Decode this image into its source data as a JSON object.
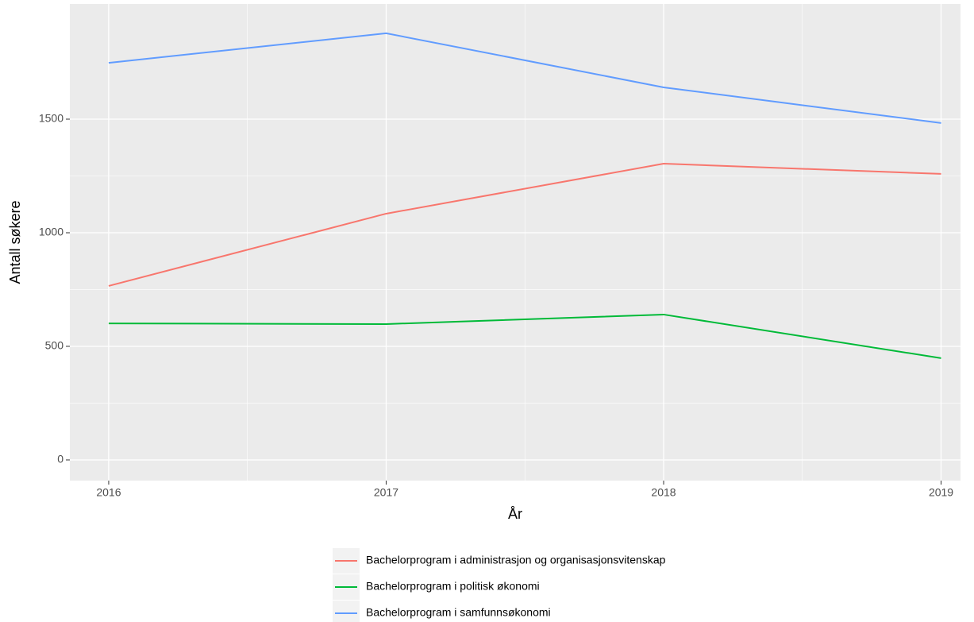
{
  "chart_data": {
    "type": "line",
    "x_label": "År",
    "y_label": "Antall søkere",
    "x": [
      2016,
      2017,
      2018,
      2019
    ],
    "series": [
      {
        "name": "Bachelorprogram i administrasjon og organisasjonsvitenskap",
        "color": "#f8766d",
        "values": [
          766,
          1084,
          1304,
          1259
        ]
      },
      {
        "name": "Bachelorprogram i politisk økonomi",
        "color": "#00ba38",
        "values": [
          601,
          598,
          640,
          448
        ]
      },
      {
        "name": "Bachelorprogram i samfunnsøkonomi",
        "color": "#619cff",
        "values": [
          1748,
          1878,
          1640,
          1483
        ]
      }
    ],
    "xlim": [
      2015.86,
      2019.07
    ],
    "xticks": [
      2016,
      2017,
      2018,
      2019
    ],
    "ylim": [
      -91,
      2007
    ],
    "yticks": [
      0,
      500,
      1000,
      1500
    ],
    "grid": true,
    "legend": "bottom"
  }
}
